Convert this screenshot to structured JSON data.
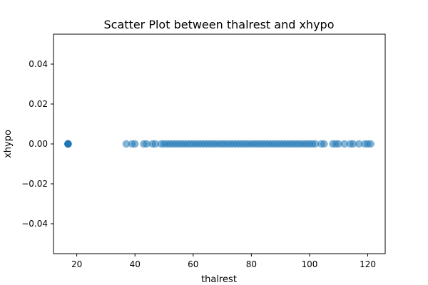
{
  "chart_data": {
    "type": "scatter",
    "title": "Scatter Plot between thalrest and xhypo",
    "xlabel": "thalrest",
    "ylabel": "xhypo",
    "xlim": [
      12,
      126
    ],
    "ylim": [
      -0.055,
      0.055
    ],
    "x_ticks": [
      20,
      40,
      60,
      80,
      100,
      120
    ],
    "y_ticks": [
      -0.04,
      -0.02,
      0.0,
      0.02,
      0.04
    ],
    "x_tick_labels": [
      "20",
      "40",
      "60",
      "80",
      "100",
      "120"
    ],
    "y_tick_labels": [
      "−0.04",
      "−0.02",
      "0.00",
      "0.02",
      "0.04"
    ],
    "grid": false,
    "legend": "none",
    "marker_color": "#1f77b4",
    "marker_alpha": 0.55,
    "series": [
      {
        "x": [
          17,
          17,
          17,
          17,
          17,
          17,
          37,
          39,
          40,
          43,
          44,
          46,
          47,
          49,
          50,
          51,
          52,
          53,
          54,
          55,
          56,
          57,
          58,
          59,
          60,
          61,
          62,
          63,
          64,
          65,
          66,
          67,
          68,
          69,
          70,
          71,
          72,
          73,
          74,
          75,
          76,
          77,
          78,
          79,
          80,
          81,
          82,
          83,
          84,
          85,
          86,
          87,
          88,
          89,
          90,
          91,
          92,
          93,
          94,
          95,
          96,
          97,
          98,
          99,
          100,
          101,
          102,
          104,
          105,
          108,
          109,
          110,
          112,
          114,
          115,
          117,
          119,
          120,
          121
        ],
        "y": [
          0,
          0,
          0,
          0,
          0,
          0,
          0,
          0,
          0,
          0,
          0,
          0,
          0,
          0,
          0,
          0,
          0,
          0,
          0,
          0,
          0,
          0,
          0,
          0,
          0,
          0,
          0,
          0,
          0,
          0,
          0,
          0,
          0,
          0,
          0,
          0,
          0,
          0,
          0,
          0,
          0,
          0,
          0,
          0,
          0,
          0,
          0,
          0,
          0,
          0,
          0,
          0,
          0,
          0,
          0,
          0,
          0,
          0,
          0,
          0,
          0,
          0,
          0,
          0,
          0,
          0,
          0,
          0,
          0,
          0,
          0,
          0,
          0,
          0,
          0,
          0,
          0,
          0,
          0
        ]
      }
    ]
  }
}
